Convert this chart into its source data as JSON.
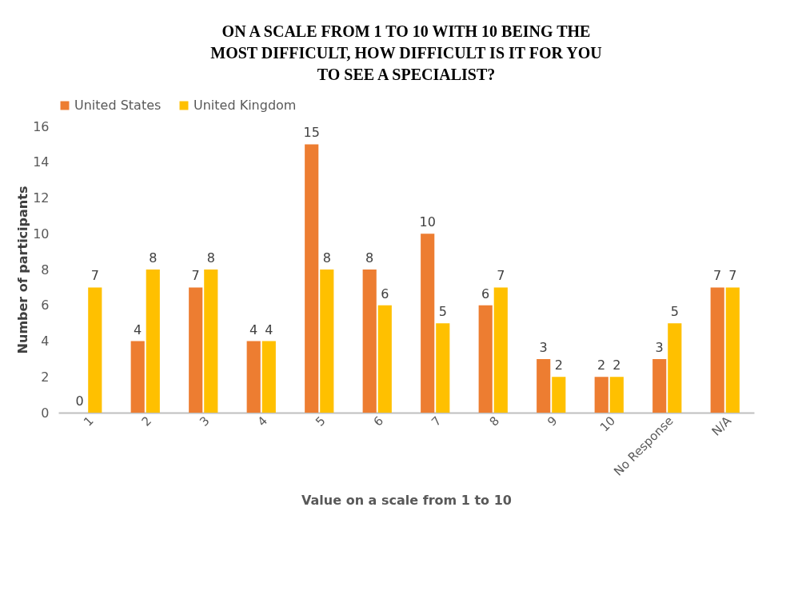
{
  "chart_data": {
    "type": "bar",
    "title": "ON A SCALE FROM 1 TO 10 WITH 10 BEING THE MOST DIFFICULT, HOW DIFFICULT IS IT FOR YOU TO SEE A SPECIALIST?",
    "xlabel": "Value on a scale from 1 to 10",
    "ylabel": "Number of participants",
    "categories": [
      "1",
      "2",
      "3",
      "4",
      "5",
      "6",
      "7",
      "8",
      "9",
      "10",
      "No Response",
      "N/A"
    ],
    "series": [
      {
        "name": "United States",
        "color": "#ed7d31",
        "values": [
          0,
          4,
          7,
          4,
          15,
          8,
          10,
          6,
          3,
          2,
          3,
          7
        ]
      },
      {
        "name": "United Kingdom",
        "color": "#ffc000",
        "values": [
          7,
          8,
          8,
          4,
          8,
          6,
          5,
          7,
          2,
          2,
          5,
          7
        ]
      }
    ],
    "ylim": [
      0,
      16
    ],
    "yticks": [
      0,
      2,
      4,
      6,
      8,
      10,
      12,
      14,
      16
    ],
    "grid": false,
    "legend": "top",
    "data_labels": true
  }
}
